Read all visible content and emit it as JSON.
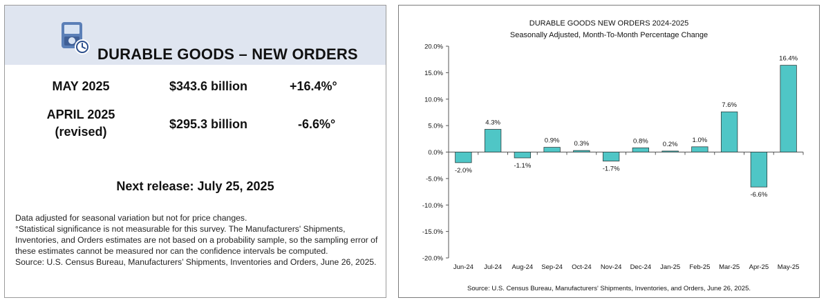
{
  "summary": {
    "title": "DURABLE GOODS – NEW ORDERS",
    "rows": [
      {
        "period": "MAY 2025",
        "period2": "",
        "amount": "$343.6 billion",
        "change": "+16.4%°"
      },
      {
        "period": "APRIL 2025",
        "period2": "(revised)",
        "amount": "$295.3 billion",
        "change": "-6.6%°"
      }
    ],
    "next_release": "Next release:  July 25, 2025",
    "notes": [
      "Data adjusted for seasonal variation but not for price changes.",
      "°Statistical significance is not measurable for this survey.  The Manufacturers' Shipments, Inventories, and Orders estimates are not based on a probability sample, so the sampling error of these estimates cannot be measured nor can the confidence intervals be computed.",
      "Source: U.S. Census Bureau, Manufacturers’ Shipments, Inventories and Orders, June 26, 2025."
    ],
    "icon": "calculator-clock-icon"
  },
  "chart_data": {
    "type": "bar",
    "title": "DURABLE GOODS NEW ORDERS 2024-2025",
    "subtitle": "Seasonally Adjusted,  Month-To-Month Percentage Change",
    "source": "Source: U.S. Census Bureau, Manufacturers' Shipments, Inventories, and Orders, June 26, 2025.",
    "categories": [
      "Jun-24",
      "Jul-24",
      "Aug-24",
      "Sep-24",
      "Oct-24",
      "Nov-24",
      "Dec-24",
      "Jan-25",
      "Feb-25",
      "Mar-25",
      "Apr-25",
      "May-25"
    ],
    "values": [
      -2.0,
      4.3,
      -1.1,
      0.9,
      0.3,
      -1.7,
      0.8,
      0.2,
      1.0,
      7.6,
      -6.6,
      16.4
    ],
    "value_labels": [
      "-2.0%",
      "4.3%",
      "-1.1%",
      "0.9%",
      "0.3%",
      "-1.7%",
      "0.8%",
      "0.2%",
      "1.0%",
      "7.6%",
      "-6.6%",
      "16.4%"
    ],
    "y_ticks": [
      20,
      15,
      10,
      5,
      0,
      -5,
      -10,
      -15,
      -20
    ],
    "y_tick_labels": [
      "20.0%",
      "15.0%",
      "10.0%",
      "5.0%",
      "0.0%",
      "-5.0%",
      "-10.0%",
      "-15.0%",
      "-20.0%"
    ],
    "ylim": [
      -20,
      20
    ],
    "grid": false,
    "legend": "none",
    "bar_color": "#4fc6c6",
    "bar_edge": "#2f3e3e"
  }
}
